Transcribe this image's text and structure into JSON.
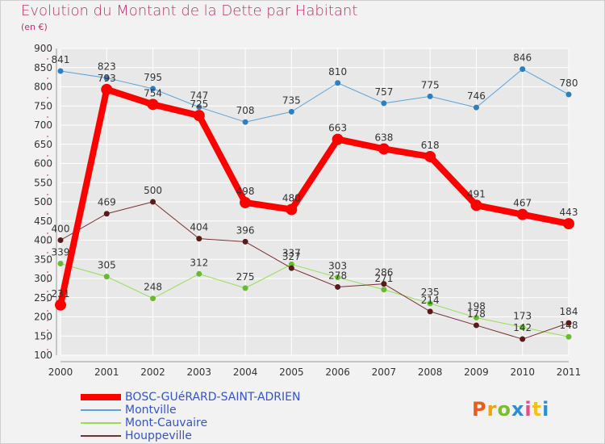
{
  "title": "Evolution du Montant de la Dette par Habitant",
  "unit_label": "(en €)",
  "logo": {
    "text": "Proxiti",
    "colors": [
      "#e85d1c",
      "#f2a11b",
      "#7abf2b",
      "#2c8fd6",
      "#e84a8a",
      "#f2c21b",
      "#2c8fd6"
    ]
  },
  "colors": {
    "title": "#c0306a",
    "axis": "#333333",
    "grid": "#ffffff",
    "legend_text": "#3355cc"
  },
  "chart_data": {
    "type": "line",
    "title": "Evolution du Montant de la Dette par Habitant",
    "ylabel": "(en €)",
    "x": [
      "2000",
      "2001",
      "2002",
      "2003",
      "2004",
      "2005",
      "2006",
      "2007",
      "2008",
      "2009",
      "2010",
      "2011"
    ],
    "ylim": [
      100,
      900
    ],
    "yticks": [
      100,
      150,
      200,
      250,
      300,
      350,
      400,
      450,
      500,
      550,
      600,
      650,
      700,
      750,
      800,
      850,
      900
    ],
    "grid": true,
    "legend_position": "bottom-left",
    "series": [
      {
        "name": "BOSC-GUéRARD-SAINT-ADRIEN",
        "color": "#ff0000",
        "values": [
          231,
          793,
          754,
          725,
          498,
          480,
          663,
          638,
          618,
          491,
          467,
          443
        ],
        "thick": true
      },
      {
        "name": "Montville",
        "color": "#5ba3d9",
        "values": [
          841,
          823,
          795,
          747,
          708,
          735,
          810,
          757,
          775,
          746,
          846,
          780
        ],
        "thick": false
      },
      {
        "name": "Mont-Cauvaire",
        "color": "#99dd55",
        "values": [
          339,
          305,
          248,
          312,
          275,
          337,
          303,
          271,
          235,
          198,
          173,
          148
        ],
        "thick": false
      },
      {
        "name": "Houppeville",
        "color": "#7a2e2e",
        "values": [
          400,
          469,
          500,
          404,
          396,
          327,
          278,
          286,
          214,
          178,
          142,
          184
        ],
        "thick": false
      }
    ]
  }
}
